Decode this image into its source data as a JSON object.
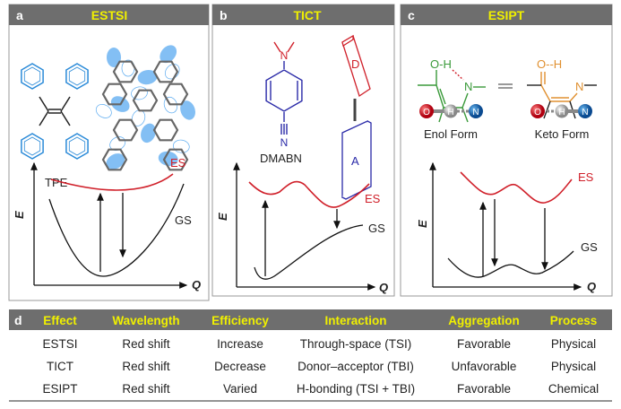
{
  "panels": [
    {
      "letter": "a",
      "title": "ESTSI",
      "molecule_label": "TPE",
      "es": "ES",
      "gs": "GS",
      "y_axis": "E",
      "x_axis": "Q"
    },
    {
      "letter": "b",
      "title": "TICT",
      "molecule_label": "DMABN",
      "donor": "D",
      "acceptor": "A",
      "es": "ES",
      "gs": "GS",
      "y_axis": "E",
      "x_axis": "Q"
    },
    {
      "letter": "c",
      "title": "ESIPT",
      "enol": "Enol Form",
      "keto": "Keto Form",
      "es": "ES",
      "gs": "GS",
      "y_axis": "E",
      "x_axis": "Q",
      "atoms": {
        "O": "O",
        "H": "H",
        "N": "N",
        "OH": "O-H",
        "ketoOH": "O--H"
      }
    }
  ],
  "colors": {
    "header_bg": "#6e6e6e",
    "header_text": "#f0f000",
    "es_curve": "#d0202a",
    "tpe": "#2a8ad8",
    "donor": "#d0202a",
    "acceptor": "#2a2aa8",
    "enol": "#3a9a3a",
    "keto": "#e09030"
  },
  "table": {
    "letter": "d",
    "headers": [
      "Effect",
      "Wavelength",
      "Efficiency",
      "Interaction",
      "Aggregation",
      "Process"
    ],
    "rows": [
      [
        "ESTSI",
        "Red shift",
        "Increase",
        "Through-space (TSI)",
        "Favorable",
        "Physical"
      ],
      [
        "TICT",
        "Red shift",
        "Decrease",
        "Donor–acceptor (TBI)",
        "Unfavorable",
        "Physical"
      ],
      [
        "ESIPT",
        "Red shift",
        "Varied",
        "H-bonding (TSI + TBI)",
        "Favorable",
        "Chemical"
      ]
    ]
  }
}
